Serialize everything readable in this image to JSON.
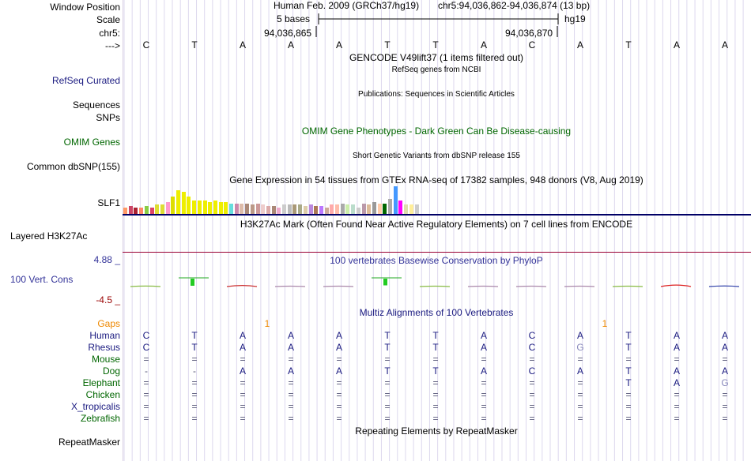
{
  "labels": {
    "window_position": "Window Position",
    "scale": "Scale",
    "chrom": "chr5:",
    "strand": "--->",
    "refseq": "RefSeq Curated",
    "sequences": "Sequences",
    "snps": "SNPs",
    "omim": "OMIM Genes",
    "dbsnp": "Common dbSNP(155)",
    "slf1": "SLF1",
    "h3k27ac": "Layered H3K27Ac",
    "cons": "100 Vert. Cons",
    "cons_max": "4.88 _",
    "cons_min": "-4.5 _",
    "repeatmasker": "RepeatMasker"
  },
  "header": {
    "assembly": "Human Feb. 2009 (GRCh37/hg19)",
    "position": "chr5:94,036,862-94,036,874 (13 bp)",
    "scale_text": "5 bases",
    "scale_db": "hg19",
    "coord_left": "94,036,865",
    "coord_right": "94,036,870"
  },
  "bases": [
    "C",
    "T",
    "A",
    "A",
    "A",
    "T",
    "T",
    "A",
    "C",
    "A",
    "T",
    "A",
    "A"
  ],
  "tracks": {
    "gencode": "GENCODE V49lift37 (1 items filtered out)",
    "refseq_sub": "RefSeq genes from NCBI",
    "publications": "Publications: Sequences in Scientific Articles",
    "omim_title": "OMIM Gene Phenotypes - Dark Green Can Be Disease-causing",
    "dbsnp_title": "Short Genetic Variants from dbSNP release 155",
    "gtex_title": "Gene Expression in 54 tissues from GTEx RNA-seq of 17382 samples, 948 donors (V8, Aug 2019)",
    "h3k27ac_title": "H3K27Ac Mark (Often Found Near Active Regulatory Elements) on 7 cell lines from ENCODE",
    "cons_title": "100 vertebrates Basewise Conservation by PhyloP",
    "multiz_title": "Multiz Alignments of 100 Vertebrates",
    "repeat_title": "Repeating Elements by RepeatMasker"
  },
  "gtex": {
    "values": [
      0.25,
      0.3,
      0.25,
      0.25,
      0.3,
      0.25,
      0.35,
      0.35,
      0.45,
      0.65,
      0.85,
      0.8,
      0.65,
      0.5,
      0.5,
      0.5,
      0.45,
      0.5,
      0.45,
      0.45,
      0.4,
      0.4,
      0.4,
      0.4,
      0.35,
      0.4,
      0.35,
      0.3,
      0.3,
      0.25,
      0.35,
      0.35,
      0.35,
      0.35,
      0.3,
      0.35,
      0.3,
      0.3,
      0.25,
      0.35,
      0.35,
      0.4,
      0.35,
      0.35,
      0.25,
      0.4,
      0.35,
      0.45,
      0.4,
      0.4,
      0.55,
      1.0,
      0.5,
      0.35,
      0.35,
      0.35
    ],
    "colors": [
      "#ff9966",
      "#cc4466",
      "#aa2233",
      "#ff8866",
      "#88cc44",
      "#dd4466",
      "#dddd33",
      "#dddd33",
      "#ff99cc",
      "#dddd00",
      "#eeee00",
      "#eeee00",
      "#eeee00",
      "#eeee00",
      "#eeee00",
      "#eeee00",
      "#eeee00",
      "#eeee00",
      "#eeee00",
      "#eeee00",
      "#66dddd",
      "#cc88aa",
      "#ddbbaa",
      "#aa8877",
      "#bb9988",
      "#cc9999",
      "#eecccc",
      "#ddaaaa",
      "#aa8877",
      "#eeaacc",
      "#cccccc",
      "#bbbbbb",
      "#aa9977",
      "#aaaa88",
      "#ddccaa",
      "#bb88dd",
      "#aa7755",
      "#bb77ff",
      "#ccaa99",
      "#ffaaaa",
      "#ffbbaa",
      "#aaaaaa",
      "#cceeaa",
      "#bbddcc",
      "#cccccc",
      "#bb99aa",
      "#ddbb99",
      "#999999",
      "#ffccaa",
      "#006600",
      "#aaaaaa",
      "#4499ff",
      "#ff00ff",
      "#ddddaa",
      "#ffee99",
      "#cccccc"
    ]
  },
  "cons_values": [
    0.05,
    0.9,
    0.35,
    0.0,
    0.0,
    0.85,
    0.0,
    0.0,
    0.0,
    0.0,
    0.0,
    0.55,
    0.1
  ],
  "multiz": {
    "gaps_label": "Gaps",
    "gap_markers": [
      "1",
      "1"
    ],
    "species": [
      {
        "name": "Human",
        "color": "#1a1a80",
        "bases": [
          "C",
          "T",
          "A",
          "A",
          "A",
          "T",
          "T",
          "A",
          "C",
          "A",
          "T",
          "A",
          "A"
        ]
      },
      {
        "name": "Rhesus",
        "color": "#1a1a80",
        "bases": [
          "C",
          "T",
          "A",
          "A",
          "A",
          "T",
          "T",
          "A",
          "C",
          "G",
          "T",
          "A",
          "A"
        ]
      },
      {
        "name": "Mouse",
        "color": "#006600",
        "bases": [
          "=",
          "=",
          "=",
          "=",
          "=",
          "=",
          "=",
          "=",
          "=",
          "=",
          "=",
          "=",
          "="
        ]
      },
      {
        "name": "Dog",
        "color": "#006600",
        "bases": [
          "-",
          "-",
          "A",
          "A",
          "A",
          "T",
          "T",
          "A",
          "C",
          "A",
          "T",
          "A",
          "A"
        ]
      },
      {
        "name": "Elephant",
        "color": "#006600",
        "bases": [
          "=",
          "=",
          "=",
          "=",
          "=",
          "=",
          "=",
          "=",
          "=",
          "=",
          "T",
          "A",
          "G"
        ]
      },
      {
        "name": "Chicken",
        "color": "#006600",
        "bases": [
          "=",
          "=",
          "=",
          "=",
          "=",
          "=",
          "=",
          "=",
          "=",
          "=",
          "=",
          "=",
          "="
        ]
      },
      {
        "name": "X_tropicalis",
        "color": "#1a1a80",
        "bases": [
          "=",
          "=",
          "=",
          "=",
          "=",
          "=",
          "=",
          "=",
          "=",
          "=",
          "=",
          "=",
          "="
        ]
      },
      {
        "name": "Zebrafish",
        "color": "#006600",
        "bases": [
          "=",
          "=",
          "=",
          "=",
          "=",
          "=",
          "=",
          "=",
          "=",
          "=",
          "=",
          "=",
          "="
        ]
      }
    ]
  },
  "colors": {
    "refseq": "#1a1a80",
    "omim": "#006600",
    "cons_title": "#333399",
    "cons_max": "#333399",
    "cons_min": "#990000",
    "gaps": "#ee8800",
    "grid": "#ddd8ee",
    "blue_sep": "#000066",
    "red_sep": "#990033"
  }
}
